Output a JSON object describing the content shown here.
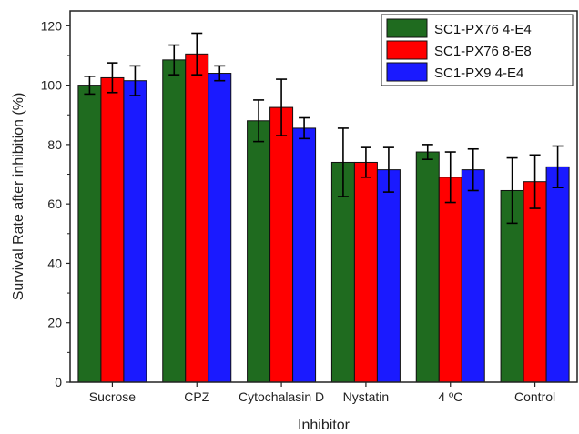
{
  "chart_data": {
    "type": "bar",
    "xlabel": "Inhibitor",
    "ylabel": "Survival Rate after inhibition (%)",
    "ylim": [
      0,
      125
    ],
    "yticks": [
      0,
      20,
      40,
      60,
      80,
      100,
      120
    ],
    "categories": [
      "Sucrose",
      "CPZ",
      "Cytochalasin D",
      "Nystatin",
      "4 ºC",
      "Control"
    ],
    "legend_position": "top-right",
    "grid": false,
    "series": [
      {
        "name": "SC1-PX76 4-E4",
        "color": "#1f6b1f",
        "values": [
          100,
          108.5,
          88,
          74,
          77.5,
          64.5
        ],
        "errors": [
          3,
          5,
          7,
          11.5,
          2.5,
          11
        ]
      },
      {
        "name": "SC1-PX76 8-E8",
        "color": "#ff0000",
        "values": [
          102.5,
          110.5,
          92.5,
          74,
          69,
          67.5
        ],
        "errors": [
          5,
          7,
          9.5,
          5,
          8.5,
          9
        ]
      },
      {
        "name": "SC1-PX9 4-E4",
        "color": "#1a1aff",
        "values": [
          101.5,
          104,
          85.5,
          71.5,
          71.5,
          72.5
        ],
        "errors": [
          5,
          2.5,
          3.5,
          7.5,
          7,
          7
        ]
      }
    ]
  }
}
